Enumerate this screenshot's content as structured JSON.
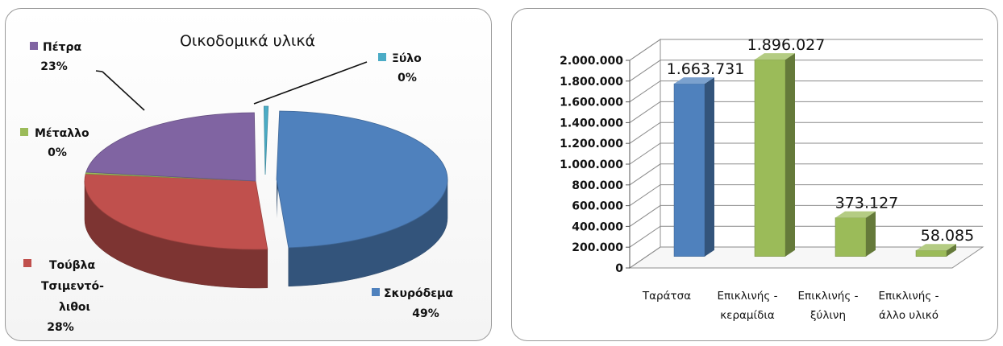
{
  "chart_data": [
    {
      "type": "pie",
      "title": "Οικοδομικά υλικά",
      "slices": [
        {
          "label": "Σκυρόδεμα",
          "pct_label": "49%",
          "value": 49,
          "color": "#4f81bd"
        },
        {
          "label": "Τούβλα Τσιμεντό- λιθοι",
          "label_lines": [
            "Τούβλα",
            "Τσιμεντό-",
            "λιθοι"
          ],
          "pct_label": "28%",
          "value": 28,
          "color": "#c0504d"
        },
        {
          "label": "Μέταλλο",
          "pct_label": "0%",
          "value": 0.4,
          "color": "#9bbb59"
        },
        {
          "label": "Πέτρα",
          "pct_label": "23%",
          "value": 23,
          "color": "#8064a2"
        },
        {
          "label": "Ξύλο",
          "pct_label": "0%",
          "value": 0.4,
          "color": "#4bacc6"
        }
      ],
      "legend": "labels-beside-slices",
      "exploded": "Σκυρόδεμα"
    },
    {
      "type": "bar",
      "categories": [
        {
          "label": "Ταράτσα",
          "lines": [
            "Ταράτσα"
          ]
        },
        {
          "label": "Επικλινής - κεραμίδια",
          "lines": [
            "Επικλινής -",
            "κεραμίδια"
          ]
        },
        {
          "label": "Επικλινής - ξύλινη",
          "lines": [
            "Επικλινής -",
            "ξύλινη"
          ]
        },
        {
          "label": "Επικλινής - άλλο υλικό",
          "lines": [
            "Επικλινής -",
            "άλλο υλικό"
          ]
        }
      ],
      "values": [
        1663731,
        1896027,
        373127,
        58085
      ],
      "value_labels": [
        "1.663.731",
        "1.896.027",
        "373.127",
        "58.085"
      ],
      "colors": [
        "#4f81bd",
        "#9bbb59",
        "#9bbb59",
        "#9bbb59"
      ],
      "ylim": [
        0,
        2000000
      ],
      "yticks": [
        "0",
        "200.000",
        "400.000",
        "600.000",
        "800.000",
        "1.000.000",
        "1.200.000",
        "1.400.000",
        "1.600.000",
        "1.800.000",
        "2.000.000"
      ],
      "grid": true,
      "style": "3d-column"
    }
  ]
}
